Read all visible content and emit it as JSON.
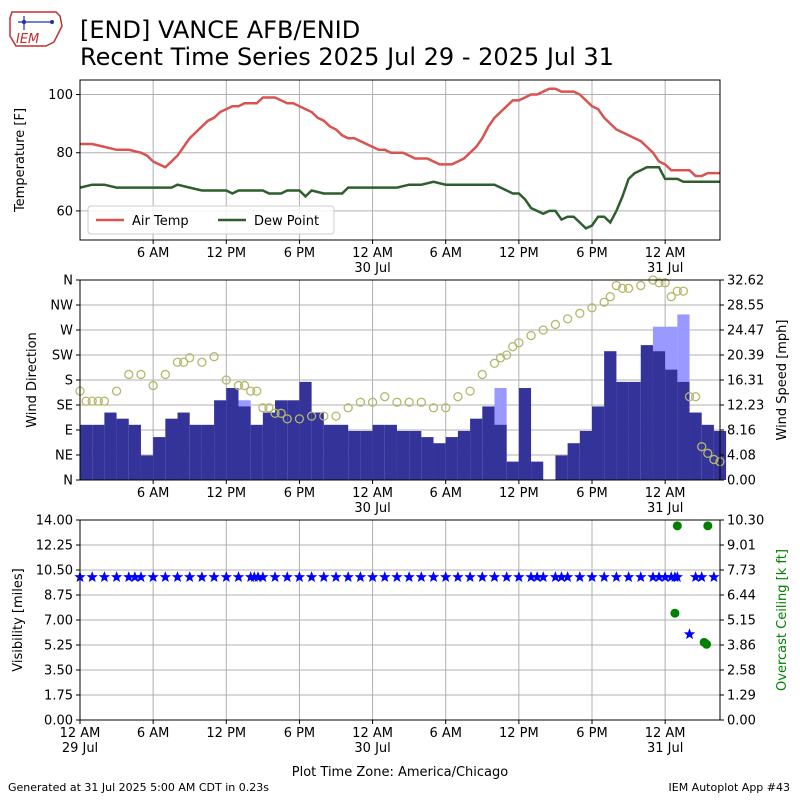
{
  "header": {
    "title_line1": "[END] VANCE AFB/ENID",
    "title_line2": "Recent Time Series 2025 Jul 29 - 2025 Jul 31",
    "logo_text": "IEM"
  },
  "footer": {
    "left": "Generated at 31 Jul 2025 5:00 AM CDT in 0.23s",
    "right": "IEM Autoplot App #43"
  },
  "colors": {
    "temp": "#d9534f",
    "dew": "#2e5e2e",
    "gust": "#9999ff",
    "wind": "#333399",
    "winddir": "#b5b86a",
    "vis": "#0000ff",
    "ceiling": "#008000",
    "grid": "#b0b0b0"
  },
  "chart_data": [
    {
      "type": "line",
      "name": "temperature",
      "xlabel": "",
      "ylabel": "Temperature [F]",
      "x_unit": "hours since 12 AM 29 Jul",
      "xlim": [
        0,
        52.5
      ],
      "ylim": [
        50,
        105
      ],
      "yticks": [
        60,
        80,
        100
      ],
      "xticks": [
        "6 AM",
        "12 PM",
        "6 PM",
        "12 AM\n30 Jul",
        "6 AM",
        "12 PM",
        "6 PM",
        "12 AM\n31 Jul"
      ],
      "xtick_hours": [
        6,
        12,
        18,
        24,
        30,
        36,
        42,
        48
      ],
      "legend": "lower-left",
      "series": [
        {
          "name": "Air Temp",
          "x": [
            0,
            1,
            2,
            3,
            4,
            5,
            5.5,
            6,
            6.5,
            7,
            7.5,
            8,
            8.5,
            9,
            9.5,
            10,
            10.5,
            11,
            11.5,
            12,
            12.5,
            13,
            13.5,
            14,
            14.5,
            15,
            15.5,
            16,
            16.5,
            17,
            17.5,
            18,
            18.5,
            19,
            19.5,
            20,
            20.5,
            21,
            21.5,
            22,
            22.5,
            23,
            23.5,
            24,
            24.5,
            25,
            25.5,
            26,
            26.5,
            27,
            27.5,
            28,
            28.5,
            29,
            29.5,
            30,
            30.5,
            31,
            31.5,
            32,
            32.5,
            33,
            33.5,
            34,
            34.5,
            35,
            35.5,
            36,
            36.5,
            37,
            37.5,
            38,
            38.5,
            39,
            39.5,
            40,
            40.5,
            41,
            41.5,
            42,
            42.5,
            43,
            43.5,
            44,
            44.5,
            45,
            45.5,
            46,
            46.5,
            47,
            47.5,
            48,
            48.5,
            49,
            49.5,
            50,
            50.5,
            51,
            51.5,
            52,
            52.5
          ],
          "y": [
            83,
            83,
            82,
            81,
            81,
            80,
            79,
            77,
            76,
            75,
            77,
            79,
            82,
            85,
            87,
            89,
            91,
            92,
            94,
            95,
            96,
            96,
            97,
            97,
            97,
            99,
            99,
            99,
            98,
            97,
            97,
            96,
            95,
            94,
            92,
            91,
            89,
            88,
            86,
            85,
            85,
            84,
            83,
            82,
            81,
            81,
            80,
            80,
            80,
            79,
            78,
            78,
            78,
            77,
            76,
            76,
            76,
            77,
            78,
            80,
            82,
            85,
            89,
            92,
            94,
            96,
            98,
            98,
            99,
            100,
            100,
            101,
            102,
            102,
            101,
            101,
            101,
            100,
            98,
            96,
            95,
            92,
            90,
            88,
            87,
            86,
            85,
            84,
            82,
            80,
            77,
            76,
            74,
            74,
            74,
            74,
            72,
            72,
            73,
            73,
            73
          ]
        },
        {
          "name": "Dew Point",
          "x": [
            0,
            1,
            2,
            3,
            4,
            5,
            6,
            7,
            7.5,
            8,
            9,
            10,
            11,
            12,
            12.5,
            13,
            14,
            15,
            15.5,
            16,
            16.5,
            17,
            17.5,
            18,
            18.5,
            19,
            20,
            21,
            21.5,
            22,
            23,
            24,
            25,
            26,
            27,
            28,
            29,
            30,
            30.5,
            31,
            31.5,
            32,
            32.5,
            33,
            33.5,
            34,
            34.5,
            35,
            35.5,
            36,
            36.5,
            37,
            37.5,
            38,
            38.5,
            39,
            39.5,
            40,
            40.5,
            41,
            41.5,
            42,
            42.5,
            43,
            43.5,
            44,
            44.5,
            45,
            45.5,
            46,
            46.5,
            47,
            47.5,
            48,
            48.5,
            49,
            49.5,
            50,
            50.5,
            51,
            51.5,
            52,
            52.5
          ],
          "y": [
            68,
            69,
            69,
            68,
            68,
            68,
            68,
            68,
            68,
            69,
            68,
            67,
            67,
            67,
            66,
            67,
            67,
            67,
            66,
            66,
            66,
            67,
            67,
            67,
            65,
            67,
            66,
            66,
            66,
            68,
            68,
            68,
            68,
            68,
            69,
            69,
            70,
            69,
            69,
            69,
            69,
            69,
            69,
            69,
            69,
            69,
            68,
            67,
            66,
            66,
            64,
            61,
            60,
            59,
            60,
            60,
            57,
            58,
            58,
            56,
            54,
            55,
            58,
            58,
            56,
            60,
            65,
            71,
            73,
            74,
            75,
            75,
            75,
            71,
            71,
            71,
            70,
            70,
            70,
            70,
            70,
            70,
            70
          ]
        }
      ]
    },
    {
      "type": "bar",
      "name": "wind",
      "ylabel": "Wind Direction",
      "y2label": "Wind Speed [mph]",
      "ylim": [
        0,
        360
      ],
      "yticks": [
        "N",
        "NE",
        "E",
        "SE",
        "S",
        "SW",
        "W",
        "NW",
        "N"
      ],
      "y2lim": [
        0,
        32.62
      ],
      "y2ticks": [
        "0.00",
        "4.08",
        "8.16",
        "12.23",
        "16.31",
        "20.39",
        "24.47",
        "28.55",
        "32.62"
      ],
      "xticks": [
        "6 AM",
        "12 PM",
        "6 PM",
        "12 AM\n30 Jul",
        "6 AM",
        "12 PM",
        "6 PM",
        "12 AM\n31 Jul"
      ],
      "series": [
        {
          "name": "Wind Speed",
          "x": [
            0.5,
            1.5,
            2.5,
            3.5,
            4.5,
            5.5,
            6.5,
            7.5,
            8.5,
            9.5,
            10.5,
            11.5,
            12.5,
            13.5,
            14.5,
            15.5,
            16.5,
            17.5,
            18.5,
            19.5,
            20.5,
            21.5,
            22.5,
            23.5,
            24.5,
            25.5,
            26.5,
            27.5,
            28.5,
            29.5,
            30.5,
            31.5,
            32.5,
            33.5,
            34.5,
            35.5,
            36.5,
            37.5,
            38.5,
            39.5,
            40.5,
            41.5,
            42.5,
            43.5,
            44.5,
            45.5,
            46.5,
            47.5,
            48.5,
            49.5,
            50.5,
            51.5,
            52.5
          ],
          "y": [
            9,
            9,
            11,
            10,
            9,
            4,
            7,
            10,
            11,
            9,
            9,
            13,
            15,
            12,
            9,
            11,
            13,
            13,
            16,
            11,
            9,
            9,
            8,
            8,
            9,
            9,
            8,
            8,
            7,
            6,
            7,
            8,
            10,
            12,
            9,
            3,
            15,
            3,
            0,
            4,
            6,
            8,
            12,
            21,
            16,
            16,
            22,
            21,
            18,
            16,
            11,
            9,
            8
          ]
        },
        {
          "name": "Gust",
          "x": [
            12.5,
            13.5,
            34.5,
            43.5,
            47.5,
            48.5,
            49.5
          ],
          "y": [
            15,
            13,
            15,
            21,
            25,
            25,
            27
          ]
        },
        {
          "name": "Wind Direction",
          "x": [
            0,
            0.5,
            1,
            1.5,
            2,
            3,
            4,
            5,
            6,
            7,
            8,
            8.5,
            9,
            10,
            11,
            12,
            13,
            13.5,
            14,
            14.5,
            15,
            15.5,
            16,
            16.5,
            17,
            18,
            19,
            20,
            21,
            22,
            23,
            24,
            25,
            26,
            27,
            28,
            29,
            30,
            31,
            32,
            33,
            34,
            34.5,
            35,
            35.5,
            36,
            37,
            38,
            39,
            40,
            41,
            42,
            43,
            43.5,
            44,
            44.5,
            45,
            46,
            47,
            47.5,
            48,
            48.5,
            49,
            49.5,
            50,
            50.5,
            51,
            51.5,
            52,
            52.5
          ],
          "y": [
            160,
            142,
            142,
            142,
            142,
            160,
            190,
            190,
            170,
            190,
            212,
            212,
            220,
            212,
            222,
            180,
            170,
            170,
            160,
            160,
            130,
            130,
            120,
            120,
            110,
            110,
            115,
            115,
            115,
            130,
            140,
            140,
            150,
            140,
            140,
            140,
            130,
            130,
            150,
            160,
            190,
            210,
            220,
            225,
            240,
            247,
            260,
            270,
            280,
            290,
            300,
            310,
            320,
            330,
            350,
            345,
            345,
            350,
            360,
            355,
            355,
            330,
            340,
            340,
            150,
            150,
            60,
            48,
            37,
            33
          ]
        }
      ]
    },
    {
      "type": "scatter",
      "name": "visibility",
      "ylabel": "Visibility [miles]",
      "y2label": "Overcast Ceiling [k ft]",
      "ylim": [
        0,
        14
      ],
      "yticks": [
        "0.00",
        "1.75",
        "3.50",
        "5.25",
        "7.00",
        "8.75",
        "10.50",
        "12.25",
        "14.00"
      ],
      "y2lim": [
        0,
        10.3
      ],
      "y2ticks": [
        "0.00",
        "1.29",
        "2.58",
        "3.86",
        "5.15",
        "6.44",
        "7.73",
        "9.01",
        "10.30"
      ],
      "xlabel": "Plot Time Zone: America/Chicago",
      "xticks": [
        "12 AM\n29 Jul",
        "6 AM",
        "12 PM",
        "6 PM",
        "12 AM\n30 Jul",
        "6 AM",
        "12 PM",
        "6 PM",
        "12 AM\n31 Jul"
      ],
      "xtick_hours": [
        0,
        6,
        12,
        18,
        24,
        30,
        36,
        42,
        48
      ],
      "series": [
        {
          "name": "Visibility",
          "x": [
            0,
            1,
            2,
            3,
            4,
            4.5,
            5,
            6,
            7,
            8,
            9,
            10,
            11,
            12,
            13,
            14,
            14.3,
            14.6,
            15,
            16,
            17,
            18,
            19,
            20,
            21,
            22,
            23,
            24,
            25,
            26,
            27,
            28,
            29,
            30,
            31,
            32,
            33,
            34,
            35,
            36,
            37,
            37.5,
            38,
            39,
            39.5,
            40,
            41,
            42,
            43,
            44,
            45,
            46,
            47,
            47.5,
            48,
            48.5,
            48.8,
            49,
            50,
            50.5,
            51,
            52
          ],
          "y": [
            10,
            10,
            10,
            10,
            10,
            10,
            10,
            10,
            10,
            10,
            10,
            10,
            10,
            10,
            10,
            10,
            10,
            10,
            10,
            10,
            10,
            10,
            10,
            10,
            10,
            10,
            10,
            10,
            10,
            10,
            10,
            10,
            10,
            10,
            10,
            10,
            10,
            10,
            10,
            10,
            10,
            10,
            10,
            10,
            10,
            10,
            10,
            10,
            10,
            10,
            10,
            10,
            10,
            10,
            10,
            10,
            10,
            10,
            6,
            10,
            10,
            10
          ]
        },
        {
          "name": "Overcast Ceiling",
          "x": [
            48.8,
            49,
            51.2,
            51.4,
            51.5
          ],
          "y": [
            5.5,
            10.0,
            4.0,
            3.9,
            10.0
          ]
        }
      ]
    }
  ]
}
